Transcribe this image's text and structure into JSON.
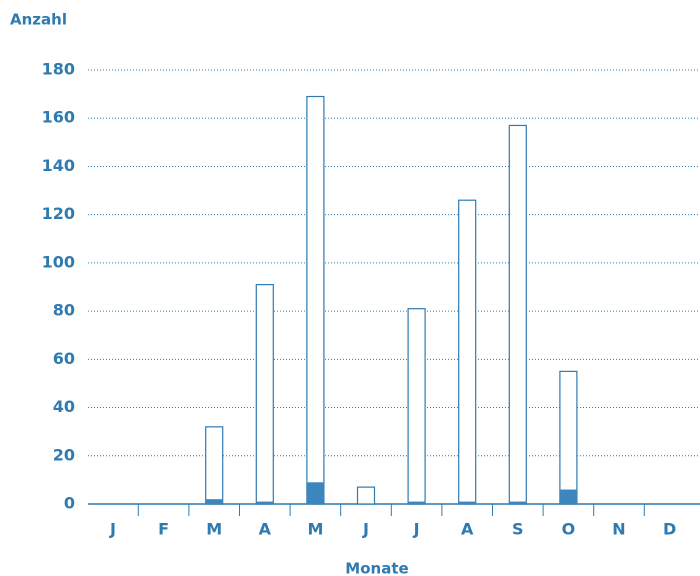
{
  "chart_data": {
    "type": "bar",
    "y_label": "Anzahl",
    "x_label": "Monate",
    "categories": [
      "J",
      "F",
      "M",
      "A",
      "M",
      "J",
      "J",
      "A",
      "S",
      "O",
      "N",
      "D"
    ],
    "series": [
      {
        "color": "#2f7ab0",
        "values": [
          0,
          0,
          32,
          91,
          169,
          7,
          81,
          126,
          157,
          55,
          0,
          0
        ]
      },
      {
        "color": "#3d85bd",
        "values": [
          0,
          0,
          2,
          1,
          9,
          0,
          1,
          1,
          1,
          6,
          0,
          0
        ]
      }
    ],
    "ylim": [
      0,
      180
    ],
    "yticks": [
      0,
      20,
      40,
      60,
      80,
      100,
      120,
      140,
      160,
      180
    ],
    "grid": true
  }
}
